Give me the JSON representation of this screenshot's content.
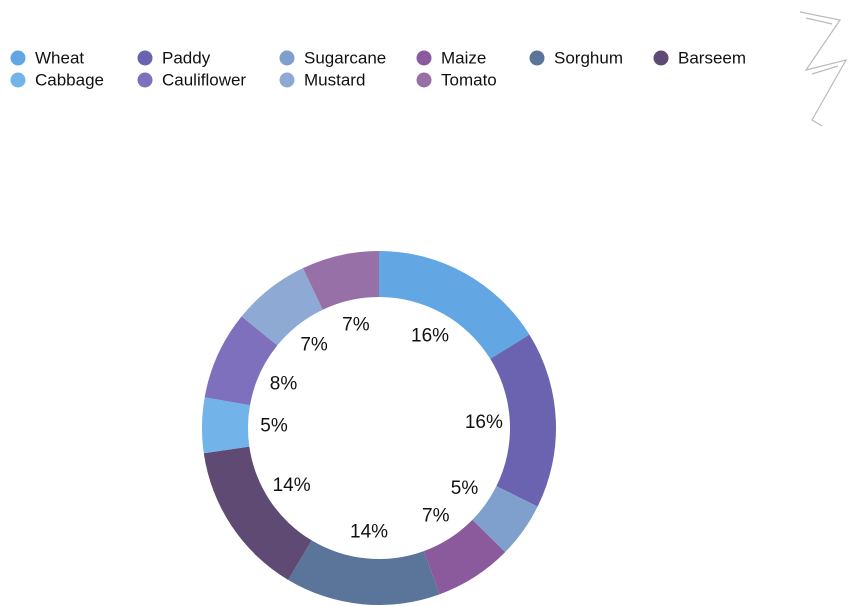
{
  "chart_data": {
    "type": "donut",
    "categories": [
      "Wheat",
      "Paddy",
      "Sugarcane",
      "Maize",
      "Sorghum",
      "Barseem",
      "Cabbage",
      "Cauliflower",
      "Mustard",
      "Tomato"
    ],
    "values": [
      16,
      16,
      5,
      7,
      14,
      14,
      5,
      8,
      7,
      7
    ],
    "value_labels": [
      "16%",
      "16%",
      "5%",
      "7%",
      "14%",
      "14%",
      "5%",
      "8%",
      "7%",
      "7%"
    ],
    "colors": [
      "#62a6e3",
      "#6c63b0",
      "#7f9fcc",
      "#8a5a9c",
      "#5b7499",
      "#5e4a73",
      "#72b4ea",
      "#7e70bd",
      "#8ea9d4",
      "#9870a8"
    ],
    "legend": "top-left"
  }
}
